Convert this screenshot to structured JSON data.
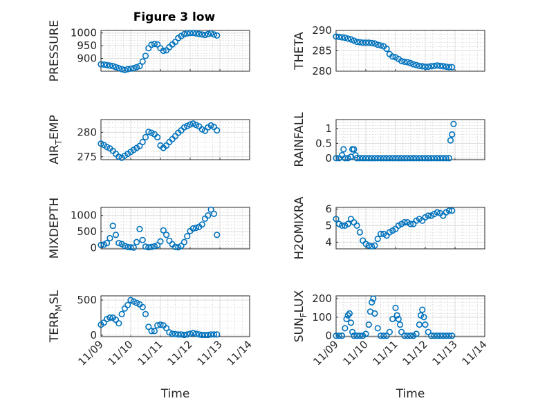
{
  "chart_data": {
    "type": "scatter",
    "title": "Figure 3 low",
    "xlabel": "Time",
    "x_tick_labels": [
      "11/09",
      "11/10",
      "11/11",
      "11/12",
      "11/13",
      "11/14"
    ],
    "xlim": [
      0,
      5
    ],
    "marker": "circle",
    "color": "#0072BD",
    "panels": [
      {
        "name": "pressure",
        "ylabel": "PRESSURE",
        "ylim": [
          850,
          1010
        ],
        "yticks": [
          900,
          950,
          1000
        ],
        "x": [
          0,
          0.1,
          0.2,
          0.3,
          0.4,
          0.5,
          0.6,
          0.7,
          0.8,
          0.9,
          1.0,
          1.1,
          1.2,
          1.3,
          1.4,
          1.5,
          1.6,
          1.7,
          1.8,
          1.9,
          2.0,
          2.1,
          2.2,
          2.3,
          2.4,
          2.5,
          2.6,
          2.7,
          2.8,
          2.9,
          3.0,
          3.1,
          3.2,
          3.3,
          3.4,
          3.5,
          3.6,
          3.7,
          3.8,
          3.9
        ],
        "y": [
          877,
          876,
          874,
          872,
          870,
          866,
          862,
          858,
          855,
          858,
          860,
          862,
          866,
          870,
          888,
          910,
          940,
          954,
          957,
          955,
          940,
          930,
          932,
          944,
          955,
          965,
          980,
          988,
          995,
          998,
          1000,
          1000,
          998,
          996,
          994,
          992,
          996,
          998,
          994,
          990
        ]
      },
      {
        "name": "theta",
        "ylabel": "THETA",
        "ylim": [
          280,
          290
        ],
        "yticks": [
          280,
          285,
          290
        ],
        "x": [
          0,
          0.1,
          0.2,
          0.3,
          0.4,
          0.5,
          0.6,
          0.7,
          0.8,
          0.9,
          1.0,
          1.1,
          1.2,
          1.3,
          1.4,
          1.5,
          1.6,
          1.7,
          1.8,
          1.9,
          2.0,
          2.1,
          2.2,
          2.3,
          2.4,
          2.5,
          2.6,
          2.7,
          2.8,
          2.9,
          3.0,
          3.1,
          3.2,
          3.3,
          3.4,
          3.5,
          3.6,
          3.7,
          3.8,
          3.9
        ],
        "y": [
          288.5,
          288.4,
          288.3,
          288.2,
          288.0,
          287.8,
          287.5,
          287.2,
          287.1,
          287.0,
          287.0,
          287.0,
          286.9,
          286.8,
          286.5,
          286.3,
          286.1,
          285.5,
          284.2,
          283.6,
          283.4,
          283.0,
          282.5,
          282.3,
          282.2,
          282.0,
          281.7,
          281.5,
          281.3,
          281.2,
          281.1,
          281.1,
          281.2,
          281.3,
          281.4,
          281.3,
          281.2,
          281.1,
          281.0,
          281.0
        ]
      },
      {
        "name": "air-temp",
        "ylabel": "AIR_TEMP",
        "ylim": [
          274.4,
          282.6
        ],
        "yticks": [
          275,
          280
        ],
        "x": [
          0,
          0.1,
          0.2,
          0.3,
          0.4,
          0.5,
          0.6,
          0.7,
          0.8,
          0.9,
          1.0,
          1.1,
          1.2,
          1.3,
          1.4,
          1.5,
          1.6,
          1.7,
          1.8,
          1.9,
          2.0,
          2.1,
          2.2,
          2.3,
          2.4,
          2.5,
          2.6,
          2.7,
          2.8,
          2.9,
          3.0,
          3.1,
          3.2,
          3.3,
          3.4,
          3.5,
          3.6,
          3.7,
          3.8,
          3.9
        ],
        "y": [
          277.7,
          277.4,
          277.0,
          276.7,
          276.2,
          275.6,
          275.0,
          274.8,
          275.2,
          275.6,
          276.0,
          276.4,
          276.8,
          277.2,
          278.0,
          279.0,
          280.1,
          279.9,
          279.6,
          279.0,
          277.3,
          276.8,
          277.3,
          278.0,
          278.6,
          279.2,
          279.9,
          280.4,
          281.0,
          281.3,
          281.6,
          281.8,
          281.5,
          281.2,
          280.6,
          280.3,
          281.0,
          281.4,
          281.1,
          280.4
        ]
      },
      {
        "name": "rainfall",
        "ylabel": "RAINFALL",
        "ylim": [
          -0.05,
          1.3
        ],
        "yticks": [
          0,
          0.5,
          1
        ],
        "x": [
          0,
          0.1,
          0.2,
          0.25,
          0.3,
          0.4,
          0.5,
          0.55,
          0.6,
          0.65,
          0.7,
          0.8,
          0.9,
          1.0,
          1.1,
          1.2,
          1.3,
          1.4,
          1.5,
          1.6,
          1.7,
          1.8,
          1.9,
          2.0,
          2.1,
          2.2,
          2.3,
          2.4,
          2.5,
          2.6,
          2.7,
          2.8,
          2.9,
          3.0,
          3.1,
          3.2,
          3.3,
          3.4,
          3.5,
          3.6,
          3.7,
          3.8,
          3.85,
          3.9,
          3.95
        ],
        "y": [
          0,
          0,
          0.1,
          0.3,
          0,
          0,
          0.05,
          0.3,
          0.3,
          0.1,
          0,
          0,
          0,
          0,
          0,
          0,
          0,
          0,
          0,
          0,
          0,
          0,
          0,
          0,
          0,
          0,
          0,
          0,
          0,
          0,
          0,
          0,
          0,
          0,
          0,
          0,
          0,
          0,
          0,
          0,
          0,
          0,
          0.6,
          0.8,
          1.15
        ]
      },
      {
        "name": "mixdepth",
        "ylabel": "MIXDEPTH",
        "ylim": [
          -30,
          1250
        ],
        "yticks": [
          0,
          500,
          1000
        ],
        "x": [
          0,
          0.1,
          0.2,
          0.3,
          0.4,
          0.5,
          0.6,
          0.7,
          0.8,
          0.9,
          1.0,
          1.1,
          1.2,
          1.3,
          1.4,
          1.5,
          1.6,
          1.7,
          1.8,
          1.9,
          2.0,
          2.1,
          2.2,
          2.3,
          2.4,
          2.5,
          2.6,
          2.7,
          2.8,
          2.9,
          3.0,
          3.1,
          3.2,
          3.3,
          3.4,
          3.5,
          3.6,
          3.7,
          3.8,
          3.9
        ],
        "y": [
          90,
          100,
          150,
          300,
          680,
          400,
          150,
          120,
          60,
          30,
          20,
          10,
          180,
          580,
          240,
          40,
          20,
          30,
          50,
          80,
          200,
          540,
          400,
          220,
          110,
          30,
          20,
          60,
          180,
          360,
          520,
          600,
          620,
          650,
          720,
          900,
          1000,
          1180,
          1050,
          400
        ]
      },
      {
        "name": "h2omixra",
        "ylabel": "H2OMIXRA",
        "ylim": [
          3.6,
          6.1
        ],
        "yticks": [
          4,
          5,
          6
        ],
        "x": [
          0,
          0.1,
          0.2,
          0.3,
          0.4,
          0.5,
          0.6,
          0.7,
          0.8,
          0.9,
          1.0,
          1.1,
          1.2,
          1.3,
          1.4,
          1.5,
          1.6,
          1.7,
          1.8,
          1.9,
          2.0,
          2.1,
          2.2,
          2.3,
          2.4,
          2.5,
          2.6,
          2.7,
          2.8,
          2.9,
          3.0,
          3.1,
          3.2,
          3.3,
          3.4,
          3.5,
          3.6,
          3.7,
          3.8,
          3.9
        ],
        "y": [
          5.4,
          5.1,
          5.0,
          5.0,
          5.1,
          5.4,
          5.2,
          5.0,
          4.6,
          4.1,
          3.9,
          3.8,
          3.75,
          3.8,
          4.2,
          4.5,
          4.5,
          4.4,
          4.6,
          4.7,
          4.8,
          5.0,
          5.1,
          5.2,
          5.2,
          5.1,
          5.1,
          5.3,
          5.4,
          5.3,
          5.5,
          5.6,
          5.6,
          5.7,
          5.8,
          5.75,
          5.6,
          5.8,
          5.9,
          5.9
        ]
      },
      {
        "name": "terr-msl",
        "ylabel": "TERR_MSL",
        "ylim": [
          -20,
          560
        ],
        "yticks": [
          0,
          500
        ],
        "x": [
          0,
          0.1,
          0.2,
          0.3,
          0.4,
          0.5,
          0.6,
          0.7,
          0.8,
          0.9,
          1.0,
          1.1,
          1.2,
          1.3,
          1.4,
          1.5,
          1.6,
          1.7,
          1.8,
          1.9,
          2.0,
          2.1,
          2.2,
          2.3,
          2.4,
          2.5,
          2.6,
          2.7,
          2.8,
          2.9,
          3.0,
          3.1,
          3.2,
          3.3,
          3.4,
          3.5,
          3.6,
          3.7,
          3.8,
          3.9
        ],
        "y": [
          150,
          180,
          230,
          250,
          250,
          220,
          170,
          300,
          380,
          430,
          500,
          480,
          460,
          440,
          400,
          300,
          120,
          60,
          60,
          140,
          150,
          140,
          100,
          40,
          20,
          15,
          10,
          10,
          5,
          10,
          20,
          30,
          20,
          10,
          5,
          5,
          5,
          10,
          10,
          10
        ]
      },
      {
        "name": "sun-flux",
        "ylabel": "SUN_FLUX",
        "ylim": [
          -5,
          215
        ],
        "yticks": [
          0,
          100,
          200
        ],
        "x": [
          0,
          0.1,
          0.2,
          0.3,
          0.35,
          0.4,
          0.45,
          0.5,
          0.55,
          0.6,
          0.7,
          0.8,
          0.9,
          1.0,
          1.1,
          1.15,
          1.2,
          1.25,
          1.3,
          1.4,
          1.5,
          1.6,
          1.7,
          1.8,
          1.9,
          2.0,
          2.05,
          2.1,
          2.15,
          2.2,
          2.3,
          2.4,
          2.5,
          2.6,
          2.7,
          2.8,
          2.85,
          2.9,
          2.95,
          3.0,
          3.1,
          3.2,
          3.3,
          3.4,
          3.5,
          3.6,
          3.7,
          3.8,
          3.9
        ],
        "y": [
          0,
          0,
          0,
          40,
          90,
          110,
          120,
          70,
          20,
          0,
          0,
          0,
          0,
          10,
          60,
          130,
          180,
          200,
          120,
          40,
          0,
          0,
          0,
          20,
          90,
          150,
          110,
          90,
          60,
          20,
          0,
          0,
          0,
          0,
          10,
          60,
          110,
          140,
          100,
          60,
          20,
          0,
          0,
          0,
          0,
          0,
          0,
          0,
          0
        ]
      }
    ]
  }
}
